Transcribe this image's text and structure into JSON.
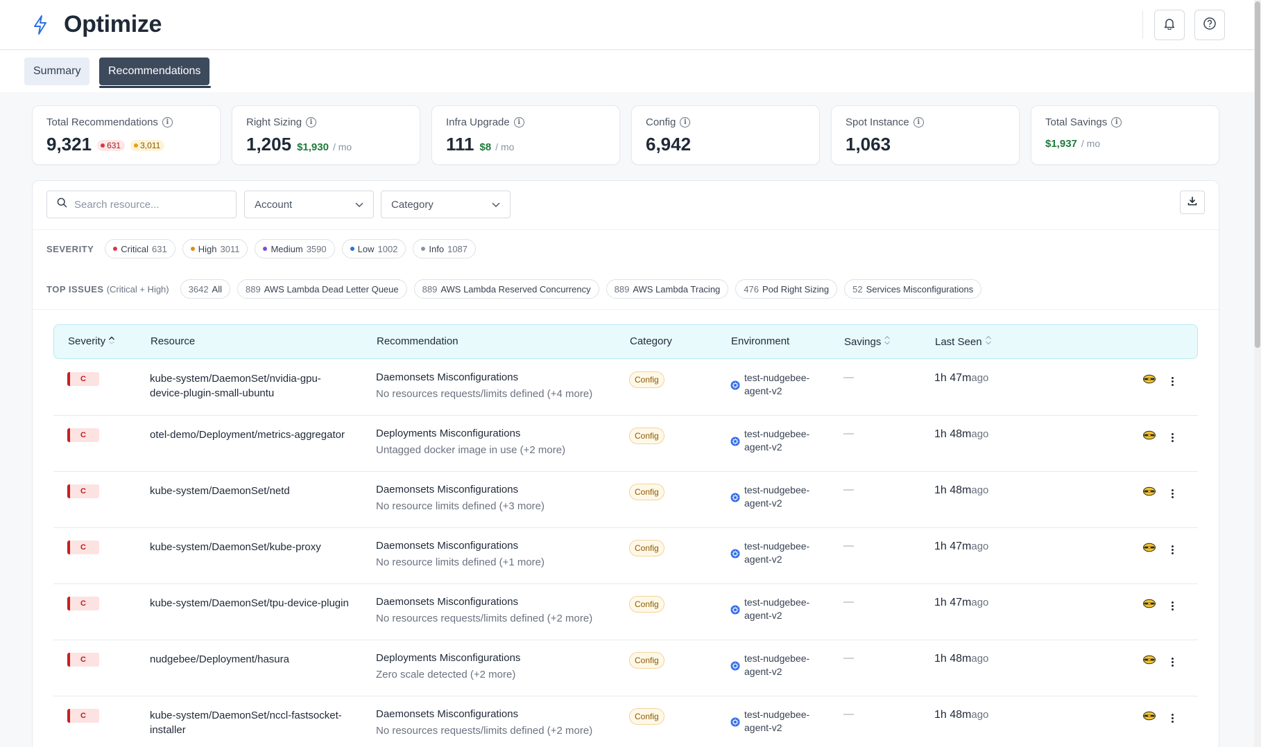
{
  "app": {
    "title": "Optimize"
  },
  "tabs": [
    {
      "label": "Summary",
      "active": false
    },
    {
      "label": "Recommendations",
      "active": true
    }
  ],
  "stats": [
    {
      "label": "Total Recommendations",
      "value": "9,321",
      "critical": "631",
      "high": "3,011"
    },
    {
      "label": "Right Sizing",
      "value": "1,205",
      "savings": "$1,930",
      "per": "/ mo"
    },
    {
      "label": "Infra Upgrade",
      "value": "111",
      "savings": "$8",
      "per": "/ mo"
    },
    {
      "label": "Config",
      "value": "6,942"
    },
    {
      "label": "Spot Instance",
      "value": "1,063"
    },
    {
      "label": "Total Savings",
      "savings": "$1,937",
      "per": "/ mo"
    }
  ],
  "filters": {
    "search_placeholder": "Search resource...",
    "account_label": "Account",
    "category_label": "Category"
  },
  "severity": {
    "label": "SEVERITY",
    "chips": [
      {
        "name": "Critical",
        "count": "631",
        "color": "#d9364b"
      },
      {
        "name": "High",
        "count": "3011",
        "color": "#e58a16"
      },
      {
        "name": "Medium",
        "count": "3590",
        "color": "#7c4ddb"
      },
      {
        "name": "Low",
        "count": "1002",
        "color": "#2f6fe0"
      },
      {
        "name": "Info",
        "count": "1087",
        "color": "#8a94a3"
      }
    ]
  },
  "top_issues": {
    "label": "TOP ISSUES",
    "sublabel": "(Critical + High)",
    "chips": [
      {
        "count": "3642",
        "name": "All"
      },
      {
        "count": "889",
        "name": "AWS Lambda Dead Letter Queue"
      },
      {
        "count": "889",
        "name": "AWS Lambda Reserved Concurrency"
      },
      {
        "count": "889",
        "name": "AWS Lambda Tracing"
      },
      {
        "count": "476",
        "name": "Pod Right Sizing"
      },
      {
        "count": "52",
        "name": "Services Misconfigurations"
      }
    ]
  },
  "table": {
    "headers": {
      "severity": "Severity",
      "resource": "Resource",
      "recommendation": "Recommendation",
      "category": "Category",
      "environment": "Environment",
      "savings": "Savings",
      "last_seen": "Last Seen"
    },
    "rows": [
      {
        "severity": "C",
        "resource": "kube-system/DaemonSet/nvidia-gpu-device-plugin-small-ubuntu",
        "rec_title": "Daemonsets Misconfigurations",
        "rec_sub": "No resources requests/limits defined (+4 more)",
        "category": "Config",
        "env": "test-nudgebee-agent-v2",
        "savings": "—",
        "seen": "1h 47m",
        "ago": "ago"
      },
      {
        "severity": "C",
        "resource": "otel-demo/Deployment/metrics-aggregator",
        "rec_title": "Deployments Misconfigurations",
        "rec_sub": "Untagged docker image in use (+2 more)",
        "category": "Config",
        "env": "test-nudgebee-agent-v2",
        "savings": "—",
        "seen": "1h 48m",
        "ago": "ago"
      },
      {
        "severity": "C",
        "resource": "kube-system/DaemonSet/netd",
        "rec_title": "Daemonsets Misconfigurations",
        "rec_sub": "No resource limits defined (+3 more)",
        "category": "Config",
        "env": "test-nudgebee-agent-v2",
        "savings": "—",
        "seen": "1h 48m",
        "ago": "ago"
      },
      {
        "severity": "C",
        "resource": "kube-system/DaemonSet/kube-proxy",
        "rec_title": "Daemonsets Misconfigurations",
        "rec_sub": "No resource limits defined (+1 more)",
        "category": "Config",
        "env": "test-nudgebee-agent-v2",
        "savings": "—",
        "seen": "1h 47m",
        "ago": "ago"
      },
      {
        "severity": "C",
        "resource": "kube-system/DaemonSet/tpu-device-plugin",
        "rec_title": "Daemonsets Misconfigurations",
        "rec_sub": "No resources requests/limits defined (+2 more)",
        "category": "Config",
        "env": "test-nudgebee-agent-v2",
        "savings": "—",
        "seen": "1h 47m",
        "ago": "ago"
      },
      {
        "severity": "C",
        "resource": "nudgebee/Deployment/hasura",
        "rec_title": "Deployments Misconfigurations",
        "rec_sub": "Zero scale detected (+2 more)",
        "category": "Config",
        "env": "test-nudgebee-agent-v2",
        "savings": "—",
        "seen": "1h 48m",
        "ago": "ago"
      },
      {
        "severity": "C",
        "resource": "kube-system/DaemonSet/nccl-fastsocket-installer",
        "rec_title": "Daemonsets Misconfigurations",
        "rec_sub": "No resources requests/limits defined (+2 more)",
        "category": "Config",
        "env": "test-nudgebee-agent-v2",
        "savings": "—",
        "seen": "1h 48m",
        "ago": "ago"
      }
    ]
  }
}
